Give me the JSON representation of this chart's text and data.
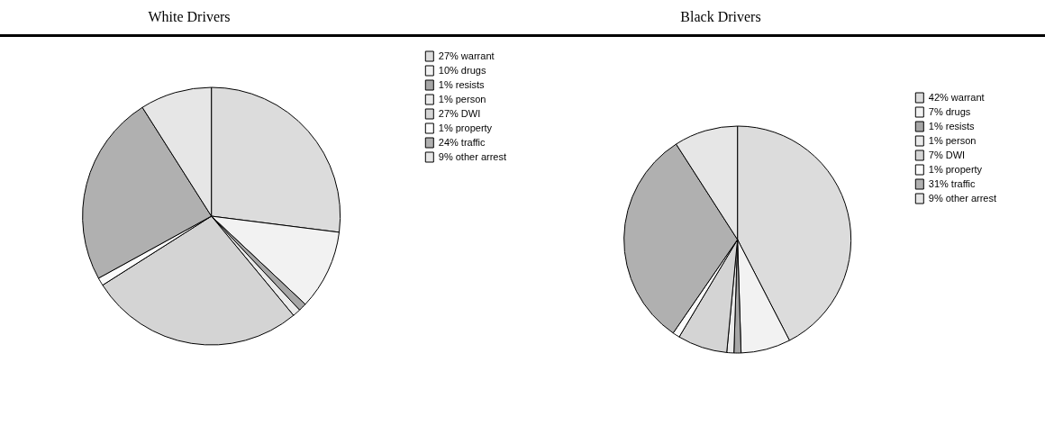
{
  "chart_data": [
    {
      "type": "pie",
      "title": "White Drivers",
      "categories": [
        "27% warrant",
        "10% drugs",
        "1% resists",
        "1% person",
        "27% DWI",
        "1% property",
        "24% traffic",
        "9% other arrest"
      ],
      "values": [
        27,
        10,
        1,
        1,
        27,
        1,
        24,
        9
      ],
      "colors": [
        "#dcdcdc",
        "#f2f2f2",
        "#a6a6a6",
        "#ebebeb",
        "#d4d4d4",
        "#fbfbfb",
        "#b0b0b0",
        "#e6e6e6"
      ],
      "legend": "top right"
    },
    {
      "type": "pie",
      "title": "Black Drivers",
      "categories": [
        "42% warrant",
        "7% drugs",
        "1% resists",
        "1% person",
        "7% DWI",
        "1% property",
        "31% traffic",
        "9% other arrest"
      ],
      "values": [
        42,
        7,
        1,
        1,
        7,
        1,
        31,
        9
      ],
      "colors": [
        "#dcdcdc",
        "#f2f2f2",
        "#a6a6a6",
        "#ebebeb",
        "#d4d4d4",
        "#fbfbfb",
        "#b0b0b0",
        "#e6e6e6"
      ],
      "legend": "top right"
    }
  ]
}
